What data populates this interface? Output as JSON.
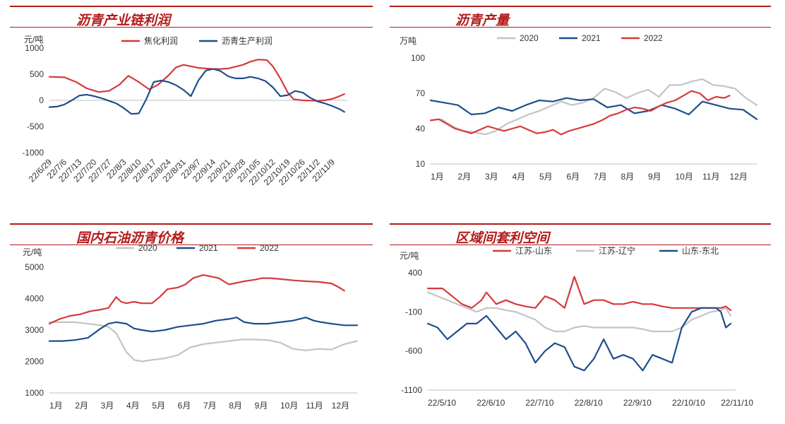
{
  "panels": {
    "p1": {
      "title": "沥青产业链利润"
    },
    "p2": {
      "title": "沥青产量"
    },
    "p3": {
      "title": "国内石油沥青价格"
    },
    "p4": {
      "title": "区域间套利空间"
    }
  },
  "chart_data": [
    {
      "id": "p1",
      "type": "line",
      "title": "沥青产业链利润",
      "ylabel": "元/吨",
      "ylim": [
        -1000,
        1000
      ],
      "yticks": [
        1000,
        500,
        0,
        -500,
        -1000
      ],
      "x_range": [
        0,
        20
      ],
      "categories": [
        "22/6/29",
        "22/7/6",
        "22/7/13",
        "22/7/20",
        "22/7/27",
        "22/8/3",
        "22/8/10",
        "22/8/17",
        "22/8/24",
        "22/8/31",
        "22/9/7",
        "22/9/14",
        "22/9/21",
        "22/9/28",
        "22/10/5",
        "22/10/12",
        "22/10/19",
        "22/10/26",
        "22/11/2",
        "22/11/9"
      ],
      "series": [
        {
          "name": "焦化利润",
          "color": "#d63a3a",
          "x": [
            0,
            1,
            1.8,
            2.5,
            3.3,
            4,
            4.7,
            5.3,
            6,
            6.7,
            7.3,
            8,
            8.5,
            9,
            10,
            11,
            11.5,
            12,
            13,
            13.5,
            14,
            14.6,
            15,
            15.5,
            16,
            16.4,
            17,
            18,
            18.5,
            19,
            19.3,
            19.8
          ],
          "y": [
            450,
            440,
            350,
            230,
            160,
            180,
            300,
            470,
            350,
            210,
            300,
            480,
            630,
            680,
            620,
            600,
            600,
            610,
            680,
            740,
            780,
            770,
            650,
            420,
            150,
            20,
            0,
            -10,
            0,
            30,
            60,
            120
          ]
        },
        {
          "name": "沥青生产利润",
          "color": "#1f4e8c",
          "x": [
            0,
            0.5,
            1,
            1.5,
            2,
            2.5,
            3,
            3.5,
            4,
            4.5,
            5,
            5.5,
            6,
            6.5,
            7,
            7.5,
            8,
            8.5,
            9,
            9.5,
            10,
            10.5,
            11,
            11.5,
            12,
            12.5,
            13,
            13.5,
            14,
            14.5,
            15,
            15.5,
            16,
            16.5,
            17,
            17.5,
            18,
            18.5,
            19,
            19.5,
            19.8
          ],
          "y": [
            -130,
            -120,
            -80,
            0,
            90,
            110,
            80,
            40,
            -10,
            -60,
            -150,
            -260,
            -250,
            20,
            350,
            380,
            350,
            290,
            200,
            80,
            380,
            570,
            600,
            560,
            460,
            420,
            420,
            450,
            420,
            370,
            250,
            80,
            100,
            180,
            150,
            50,
            -20,
            -60,
            -110,
            -170,
            -220
          ]
        }
      ]
    },
    {
      "id": "p2",
      "type": "line",
      "title": "沥青产量",
      "ylabel": "万吨",
      "ylim": [
        10,
        100
      ],
      "yticks": [
        100,
        70,
        40,
        10
      ],
      "x_range": [
        0,
        12
      ],
      "categories": [
        "1月",
        "2月",
        "3月",
        "4月",
        "5月",
        "6月",
        "7月",
        "8月",
        "9月",
        "10月",
        "11月",
        "12月"
      ],
      "series": [
        {
          "name": "2020",
          "color": "#c4c4c4",
          "x": [
            0,
            0.4,
            0.8,
            1.2,
            1.6,
            2,
            2.4,
            2.8,
            3.2,
            3.6,
            4,
            4.4,
            4.8,
            5.2,
            5.6,
            6,
            6.4,
            6.8,
            7.2,
            7.6,
            8,
            8.4,
            8.8,
            9.2,
            9.6,
            10,
            10.4,
            10.8,
            11.2,
            11.6,
            12
          ],
          "y": [
            47,
            48,
            42,
            38,
            37,
            35,
            38,
            44,
            48,
            52,
            55,
            59,
            63,
            60,
            62,
            66,
            74,
            71,
            66,
            70,
            73,
            67,
            77,
            77,
            80,
            82,
            77,
            76,
            74,
            66,
            60
          ]
        },
        {
          "name": "2021",
          "color": "#1f4e8c",
          "x": [
            0,
            0.5,
            1,
            1.5,
            2,
            2.5,
            3,
            3.5,
            4,
            4.5,
            5,
            5.5,
            6,
            6.5,
            7,
            7.5,
            8,
            8.5,
            9,
            9.5,
            10,
            10.5,
            11,
            11.5,
            12
          ],
          "y": [
            64,
            62,
            60,
            52,
            53,
            58,
            55,
            60,
            64,
            63,
            66,
            64,
            65,
            58,
            60,
            53,
            55,
            60,
            57,
            52,
            63,
            60,
            57,
            56,
            48
          ]
        },
        {
          "name": "2022",
          "color": "#d63a3a",
          "x": [
            0,
            0.3,
            0.6,
            0.9,
            1.2,
            1.5,
            1.8,
            2.1,
            2.4,
            2.7,
            3,
            3.3,
            3.6,
            3.9,
            4.2,
            4.5,
            4.8,
            5.1,
            5.4,
            5.7,
            6,
            6.3,
            6.6,
            6.9,
            7.2,
            7.5,
            7.8,
            8.1,
            8.4,
            8.7,
            9,
            9.3,
            9.6,
            9.9,
            10.2,
            10.5,
            10.8,
            11
          ],
          "y": [
            47,
            48,
            44,
            40,
            38,
            36,
            39,
            42,
            40,
            38,
            40,
            42,
            39,
            36,
            37,
            39,
            35,
            38,
            40,
            42,
            44,
            47,
            51,
            53,
            56,
            58,
            57,
            55,
            59,
            62,
            64,
            68,
            72,
            70,
            64,
            67,
            66,
            68
          ]
        }
      ]
    },
    {
      "id": "p3",
      "type": "line",
      "title": "国内石油沥青价格",
      "ylabel": "元/吨",
      "ylim": [
        1000,
        5000
      ],
      "yticks": [
        5000,
        4000,
        3000,
        2000,
        1000
      ],
      "x_range": [
        0,
        12
      ],
      "categories": [
        "1月",
        "2月",
        "3月",
        "4月",
        "5月",
        "6月",
        "7月",
        "8月",
        "9月",
        "10月",
        "11月",
        "12月"
      ],
      "series": [
        {
          "name": "2020",
          "color": "#c4c4c4",
          "x": [
            0,
            0.5,
            1,
            1.5,
            2,
            2.3,
            2.6,
            2.8,
            3,
            3.3,
            3.6,
            4,
            4.5,
            5,
            5.5,
            6,
            6.5,
            7,
            7.5,
            8,
            8.5,
            9,
            9.5,
            10,
            10.5,
            11,
            11.5,
            12
          ],
          "y": [
            3250,
            3250,
            3250,
            3200,
            3150,
            3100,
            2900,
            2600,
            2300,
            2050,
            2000,
            2050,
            2100,
            2200,
            2450,
            2550,
            2600,
            2650,
            2700,
            2700,
            2680,
            2600,
            2400,
            2350,
            2400,
            2380,
            2550,
            2650
          ]
        },
        {
          "name": "2021",
          "color": "#1f4e8c",
          "x": [
            0,
            0.5,
            1,
            1.5,
            2,
            2.3,
            2.6,
            3,
            3.3,
            3.6,
            4,
            4.5,
            5,
            5.5,
            6,
            6.5,
            7,
            7.3,
            7.6,
            8,
            8.5,
            9,
            9.5,
            10,
            10.3,
            10.6,
            11,
            11.5,
            12
          ],
          "y": [
            2650,
            2650,
            2680,
            2750,
            3050,
            3200,
            3250,
            3200,
            3050,
            3000,
            2950,
            3000,
            3100,
            3150,
            3200,
            3300,
            3350,
            3400,
            3250,
            3200,
            3200,
            3250,
            3300,
            3400,
            3300,
            3250,
            3200,
            3150,
            3150
          ]
        },
        {
          "name": "2022",
          "color": "#d63a3a",
          "x": [
            0,
            0.4,
            0.8,
            1.2,
            1.6,
            2,
            2.3,
            2.6,
            2.8,
            3,
            3.3,
            3.6,
            4,
            4.3,
            4.6,
            5,
            5.3,
            5.6,
            6,
            6.3,
            6.6,
            7,
            7.3,
            7.6,
            8,
            8.3,
            8.6,
            9,
            9.5,
            10,
            10.5,
            11,
            11.3,
            11.5
          ],
          "y": [
            3200,
            3350,
            3450,
            3500,
            3600,
            3650,
            3700,
            4050,
            3900,
            3850,
            3900,
            3850,
            3850,
            4050,
            4300,
            4350,
            4450,
            4650,
            4750,
            4700,
            4650,
            4450,
            4500,
            4550,
            4600,
            4650,
            4650,
            4620,
            4580,
            4550,
            4530,
            4480,
            4350,
            4250
          ]
        }
      ]
    },
    {
      "id": "p4",
      "type": "line",
      "title": "区域间套利空间",
      "ylabel": "元/吨",
      "ylim": [
        -1100,
        400
      ],
      "yticks": [
        400,
        -100,
        -600,
        -1100
      ],
      "x_range": [
        0,
        6.3
      ],
      "categories": [
        "22/5/10",
        "22/6/10",
        "22/7/10",
        "22/8/10",
        "22/9/10",
        "22/10/10",
        "22/11/10"
      ],
      "series": [
        {
          "name": "江苏-山东",
          "color": "#d63a3a",
          "x": [
            0,
            0.3,
            0.5,
            0.7,
            0.9,
            1.1,
            1.2,
            1.4,
            1.6,
            1.8,
            2,
            2.2,
            2.4,
            2.6,
            2.8,
            3,
            3.2,
            3.4,
            3.6,
            3.8,
            4,
            4.2,
            4.4,
            4.6,
            4.8,
            5,
            5.2,
            5.4,
            5.6,
            5.8,
            6,
            6.1,
            6.2
          ],
          "y": [
            200,
            200,
            100,
            0,
            -50,
            50,
            150,
            0,
            50,
            0,
            -30,
            -50,
            100,
            50,
            -50,
            350,
            0,
            50,
            50,
            0,
            0,
            30,
            0,
            0,
            -30,
            -50,
            -50,
            -50,
            -50,
            -50,
            -50,
            -30,
            -80
          ]
        },
        {
          "name": "江苏-辽宁",
          "color": "#c4c4c4",
          "x": [
            0,
            0.2,
            0.4,
            0.6,
            0.8,
            1,
            1.2,
            1.4,
            1.6,
            1.8,
            2,
            2.2,
            2.4,
            2.6,
            2.8,
            3,
            3.2,
            3.4,
            3.6,
            3.8,
            4,
            4.2,
            4.4,
            4.6,
            4.8,
            5,
            5.2,
            5.4,
            5.6,
            5.8,
            6,
            6.1,
            6.2
          ],
          "y": [
            150,
            100,
            50,
            0,
            -50,
            -100,
            -50,
            -50,
            -80,
            -100,
            -150,
            -200,
            -300,
            -350,
            -350,
            -300,
            -280,
            -300,
            -300,
            -300,
            -300,
            -300,
            -320,
            -350,
            -350,
            -350,
            -300,
            -200,
            -150,
            -100,
            -80,
            -50,
            -150
          ]
        },
        {
          "name": "山东-东北",
          "color": "#1f4e8c",
          "x": [
            0,
            0.2,
            0.4,
            0.6,
            0.8,
            1,
            1.2,
            1.4,
            1.6,
            1.8,
            2,
            2.2,
            2.4,
            2.6,
            2.8,
            3,
            3.2,
            3.4,
            3.6,
            3.8,
            4,
            4.2,
            4.4,
            4.6,
            4.8,
            5,
            5.2,
            5.4,
            5.6,
            5.8,
            5.9,
            6,
            6.1,
            6.2
          ],
          "y": [
            -250,
            -300,
            -450,
            -350,
            -250,
            -250,
            -150,
            -300,
            -450,
            -350,
            -500,
            -750,
            -600,
            -500,
            -550,
            -800,
            -850,
            -700,
            -450,
            -700,
            -650,
            -700,
            -850,
            -650,
            -700,
            -750,
            -300,
            -100,
            -50,
            -50,
            -50,
            -100,
            -300,
            -250
          ]
        }
      ]
    }
  ]
}
